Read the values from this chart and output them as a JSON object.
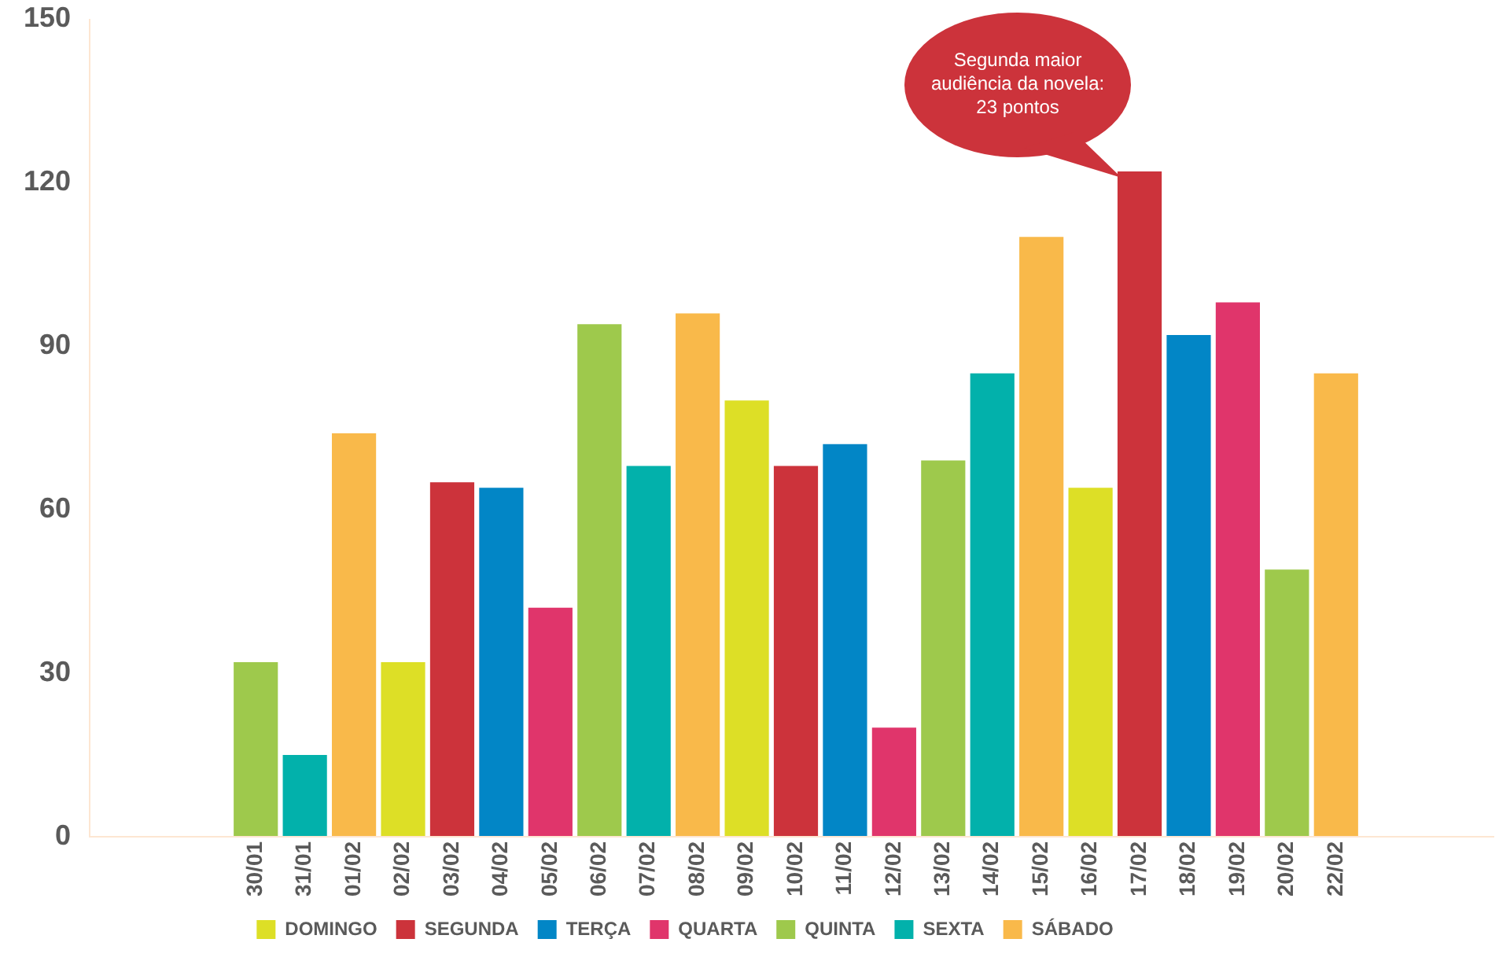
{
  "chart_data": {
    "type": "bar",
    "categories": [
      "30/01",
      "31/01",
      "01/02",
      "02/02",
      "03/02",
      "04/02",
      "05/02",
      "06/02",
      "07/02",
      "08/02",
      "09/02",
      "10/02",
      "11/02",
      "12/02",
      "13/02",
      "14/02",
      "15/02",
      "16/02",
      "17/02",
      "18/02",
      "19/02",
      "20/02",
      "22/02"
    ],
    "series": [
      {
        "name": "DOMINGO",
        "color": "#dddf26",
        "values": [
          null,
          null,
          null,
          32,
          null,
          null,
          null,
          null,
          null,
          null,
          80,
          null,
          null,
          null,
          null,
          null,
          null,
          64,
          null,
          null,
          null,
          null,
          null
        ]
      },
      {
        "name": "SEGUNDA",
        "color": "#cc333b",
        "values": [
          null,
          null,
          null,
          null,
          65,
          null,
          null,
          null,
          null,
          null,
          null,
          68,
          null,
          null,
          null,
          null,
          null,
          null,
          122,
          null,
          null,
          null,
          null
        ]
      },
      {
        "name": "TERÇA",
        "color": "#0286c6",
        "values": [
          null,
          null,
          null,
          null,
          null,
          64,
          null,
          null,
          null,
          null,
          null,
          null,
          72,
          null,
          null,
          null,
          null,
          null,
          null,
          92,
          null,
          null,
          null
        ]
      },
      {
        "name": "QUARTA",
        "color": "#e0356b",
        "values": [
          null,
          null,
          null,
          null,
          null,
          null,
          42,
          null,
          null,
          null,
          null,
          null,
          null,
          20,
          null,
          null,
          null,
          null,
          null,
          null,
          98,
          null,
          null
        ]
      },
      {
        "name": "QUINTA",
        "color": "#9ec94c",
        "values": [
          32,
          null,
          null,
          null,
          null,
          null,
          null,
          94,
          null,
          null,
          null,
          null,
          null,
          null,
          69,
          null,
          null,
          null,
          null,
          null,
          null,
          49,
          null
        ]
      },
      {
        "name": "SEXTA",
        "color": "#02b1ab",
        "values": [
          null,
          15,
          null,
          null,
          null,
          null,
          null,
          null,
          68,
          null,
          null,
          null,
          null,
          null,
          null,
          85,
          null,
          null,
          null,
          null,
          null,
          null,
          null
        ]
      },
      {
        "name": "SÁBADO",
        "color": "#f9b94a",
        "values": [
          null,
          null,
          74,
          null,
          null,
          null,
          null,
          null,
          null,
          96,
          null,
          null,
          null,
          null,
          null,
          null,
          110,
          null,
          null,
          null,
          null,
          null,
          85
        ]
      }
    ],
    "ylim": [
      0,
      150
    ],
    "yticks": [
      0,
      30,
      60,
      90,
      120,
      150
    ],
    "grid": false,
    "legend": "bottom",
    "annotations": [
      "Segunda maior\naudiência da novela:\n23 pontos"
    ]
  }
}
